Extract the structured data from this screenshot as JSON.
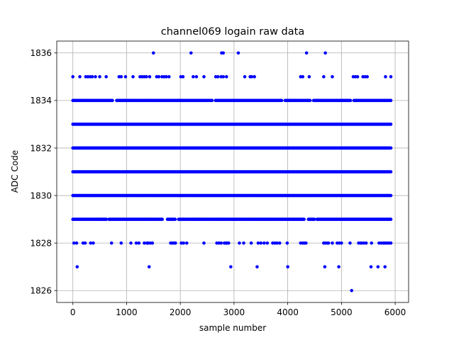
{
  "chart_data": {
    "type": "scatter",
    "title": "channel069 logain raw data",
    "xlabel": "sample number",
    "ylabel": "ADC Code",
    "xlim": [
      -300,
      6250
    ],
    "ylim": [
      1825.5,
      1836.5
    ],
    "x_ticks": [
      0,
      1000,
      2000,
      3000,
      4000,
      5000,
      6000
    ],
    "y_ticks": [
      1826,
      1828,
      1830,
      1832,
      1834,
      1836
    ],
    "grid": true,
    "marker_color": "#0000ff",
    "sample_range": [
      0,
      5930
    ],
    "series": [
      {
        "values_by_level": [
          {
            "y": 1836,
            "x": [
              1500,
              2200,
              2770,
              2800,
              3080,
              4350,
              4700
            ]
          },
          {
            "y": 1835,
            "x": [
              0,
              130,
              240,
              280,
              320,
              360,
              420,
              500,
              620,
              860,
              900,
              980,
              1120,
              1250,
              1290,
              1330,
              1370,
              1430,
              1560,
              1600,
              1660,
              1700,
              1740,
              1790,
              2010,
              2050,
              2240,
              2300,
              2440,
              2660,
              2700,
              2760,
              2800,
              2860,
              3200,
              3300,
              3330,
              3380,
              4240,
              4280,
              4400,
              4670,
              4830,
              5220,
              5260,
              5300,
              5400,
              5440,
              5480,
              5820,
              5920
            ]
          },
          {
            "y": 1834,
            "x_ranges": [
              [
                0,
                5930
              ]
            ],
            "gaps": [
              [
                740,
                800
              ],
              [
                2600,
                2640
              ],
              [
                3900,
                3940
              ],
              [
                4430,
                4470
              ],
              [
                5180,
                5220
              ]
            ]
          },
          {
            "y": 1833,
            "x_ranges": [
              [
                0,
                5930
              ]
            ]
          },
          {
            "y": 1832,
            "x_ranges": [
              [
                0,
                5930
              ]
            ]
          },
          {
            "y": 1831,
            "x_ranges": [
              [
                0,
                5930
              ]
            ]
          },
          {
            "y": 1830,
            "x_ranges": [
              [
                0,
                5930
              ]
            ]
          },
          {
            "y": 1829,
            "x_ranges": [
              [
                0,
                5930
              ]
            ],
            "gaps": [
              [
                630,
                670
              ],
              [
                1680,
                1750
              ],
              [
                1920,
                1960
              ],
              [
                4320,
                4370
              ],
              [
                4510,
                4540
              ]
            ]
          },
          {
            "y": 1828,
            "x": [
              20,
              70,
              190,
              230,
              330,
              380,
              720,
              900,
              1080,
              1180,
              1230,
              1330,
              1380,
              1400,
              1440,
              1480,
              1820,
              1850,
              1880,
              1910,
              2020,
              2060,
              2120,
              2440,
              2680,
              2720,
              2760,
              2820,
              2850,
              2870,
              2900,
              3100,
              3180,
              3320,
              3450,
              3500,
              3560,
              3620,
              3720,
              3760,
              3800,
              3850,
              3990,
              4240,
              4280,
              4310,
              4340,
              4670,
              4700,
              4740,
              4760,
              4830,
              4920,
              4960,
              5000,
              5160,
              5320,
              5360,
              5380,
              5420,
              5460,
              5560,
              5700,
              5740,
              5780,
              5800,
              5830,
              5860,
              5890,
              5920
            ]
          },
          {
            "y": 1827,
            "x": [
              80,
              1420,
              2940,
              3430,
              4000,
              4690,
              4950,
              5550,
              5680,
              5810
            ]
          },
          {
            "y": 1826,
            "x": [
              5190
            ]
          }
        ]
      }
    ]
  }
}
